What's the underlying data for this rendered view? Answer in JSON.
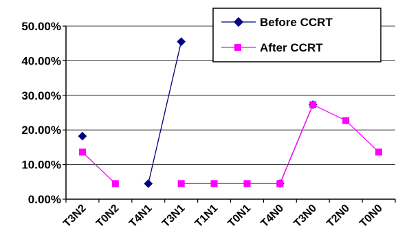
{
  "chart_data": {
    "type": "line",
    "categories": [
      "T3N2",
      "T0N2",
      "T4N1",
      "T3N1",
      "T1N1",
      "T0N1",
      "T4N0",
      "T3N0",
      "T2N0",
      "T0N0"
    ],
    "y_ticks": [
      "0.00%",
      "10.00%",
      "20.00%",
      "30.00%",
      "40.00%",
      "50.00%"
    ],
    "ylim": [
      0,
      50
    ],
    "grid": true,
    "legend_position": "top-right",
    "series": [
      {
        "name": "Before CCRT",
        "color": "#000080",
        "marker": "diamond",
        "values": [
          18.2,
          null,
          4.5,
          45.5,
          null,
          null,
          4.5,
          27.3,
          null,
          null
        ]
      },
      {
        "name": "After CCRT",
        "color": "#FF00FF",
        "marker": "square",
        "values": [
          13.6,
          4.5,
          null,
          4.5,
          4.5,
          4.5,
          4.5,
          27.3,
          22.7,
          13.6
        ]
      }
    ]
  }
}
